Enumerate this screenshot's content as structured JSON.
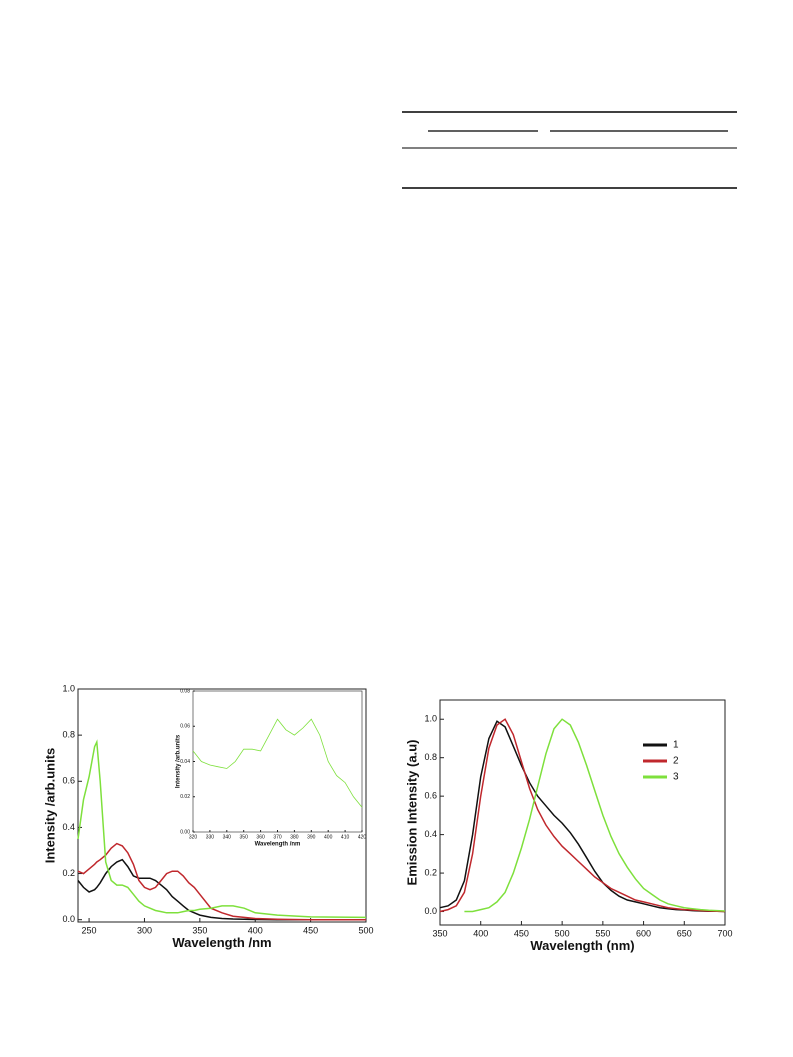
{
  "chart_data": [
    {
      "type": "line",
      "xlabel": "Wavelength /nm",
      "ylabel": "Intensity /arb.units",
      "x": [
        240,
        245,
        250,
        255,
        257,
        260,
        265,
        270,
        275,
        280,
        285,
        290,
        295,
        300,
        305,
        310,
        315,
        320,
        325,
        330,
        335,
        340,
        345,
        350,
        360,
        370,
        380,
        390,
        400,
        420,
        450,
        500
      ],
      "series": [
        {
          "name": "1",
          "color": "#111111",
          "values": [
            0.17,
            0.14,
            0.12,
            0.13,
            0.14,
            0.16,
            0.2,
            0.23,
            0.25,
            0.26,
            0.23,
            0.19,
            0.18,
            0.18,
            0.18,
            0.17,
            0.15,
            0.13,
            0.1,
            0.08,
            0.06,
            0.04,
            0.03,
            0.02,
            0.01,
            0.005,
            0.003,
            0.002,
            0.001,
            0,
            0,
            0
          ]
        },
        {
          "name": "2",
          "color": "#c0282d",
          "values": [
            0.21,
            0.2,
            0.22,
            0.24,
            0.25,
            0.26,
            0.28,
            0.31,
            0.33,
            0.32,
            0.29,
            0.24,
            0.17,
            0.14,
            0.13,
            0.14,
            0.17,
            0.2,
            0.21,
            0.21,
            0.19,
            0.16,
            0.14,
            0.11,
            0.05,
            0.03,
            0.015,
            0.01,
            0.005,
            0.002,
            0,
            0
          ]
        },
        {
          "name": "3",
          "color": "#7ee03c",
          "values": [
            0.35,
            0.52,
            0.62,
            0.75,
            0.77,
            0.6,
            0.25,
            0.17,
            0.15,
            0.15,
            0.14,
            0.11,
            0.08,
            0.06,
            0.05,
            0.04,
            0.035,
            0.03,
            0.03,
            0.03,
            0.035,
            0.04,
            0.04,
            0.045,
            0.05,
            0.06,
            0.06,
            0.05,
            0.03,
            0.02,
            0.012,
            0.01
          ]
        }
      ],
      "xlim": [
        240,
        500
      ],
      "xticks": [
        250,
        300,
        350,
        400,
        450,
        500
      ],
      "ylim": [
        -0.01,
        1.0
      ],
      "yticks": [
        {
          "value": 0,
          "label": "0.0"
        },
        0.2,
        0.4,
        0.6,
        0.8,
        {
          "value": 1,
          "label": "1.0"
        }
      ]
    },
    {
      "type": "line",
      "xlabel": "Wavelength /nm",
      "ylabel": "Intensity /arb.units",
      "x": [
        320,
        325,
        330,
        335,
        340,
        345,
        350,
        355,
        360,
        365,
        370,
        375,
        380,
        385,
        390,
        395,
        400,
        405,
        410,
        415,
        420
      ],
      "series": [
        {
          "color": "#7ee03c",
          "values": [
            0.046,
            0.04,
            0.038,
            0.037,
            0.036,
            0.04,
            0.047,
            0.047,
            0.046,
            0.055,
            0.064,
            0.058,
            0.055,
            0.059,
            0.064,
            0.055,
            0.04,
            0.032,
            0.028,
            0.02,
            0.014
          ]
        }
      ],
      "xlim": [
        320,
        420
      ],
      "xticks": [
        320,
        330,
        340,
        350,
        360,
        370,
        380,
        390,
        400,
        410,
        420
      ],
      "ylim": [
        0,
        0.08
      ],
      "yticks": [
        {
          "value": 0,
          "label": "0.00"
        },
        {
          "value": 0.02,
          "label": "0.02"
        },
        {
          "value": 0.04,
          "label": "0.04"
        },
        {
          "value": 0.06,
          "label": "0.06"
        },
        {
          "value": 0.08,
          "label": "0.08"
        }
      ]
    },
    {
      "type": "line",
      "xlabel": "Wavelength (nm)",
      "ylabel": "Emission Intensity (a.u)",
      "x": [
        350,
        360,
        370,
        380,
        390,
        400,
        410,
        420,
        430,
        440,
        450,
        460,
        470,
        480,
        490,
        500,
        510,
        520,
        530,
        540,
        550,
        560,
        570,
        580,
        590,
        600,
        610,
        620,
        630,
        640,
        650,
        660,
        670,
        680,
        690,
        700
      ],
      "series": [
        {
          "name": "1",
          "color": "#111111",
          "values": [
            0.02,
            0.03,
            0.06,
            0.16,
            0.4,
            0.7,
            0.9,
            0.99,
            0.96,
            0.86,
            0.76,
            0.67,
            0.6,
            0.55,
            0.5,
            0.46,
            0.41,
            0.35,
            0.28,
            0.21,
            0.15,
            0.11,
            0.08,
            0.06,
            0.05,
            0.04,
            0.03,
            0.02,
            0.015,
            0.01,
            0.008,
            0.005,
            0.003,
            0.002,
            0.001,
            0
          ]
        },
        {
          "name": "2",
          "color": "#c0282d",
          "values": [
            0,
            0.01,
            0.03,
            0.1,
            0.3,
            0.6,
            0.85,
            0.97,
            1.0,
            0.92,
            0.78,
            0.64,
            0.53,
            0.45,
            0.39,
            0.34,
            0.3,
            0.26,
            0.22,
            0.18,
            0.15,
            0.12,
            0.1,
            0.08,
            0.06,
            0.05,
            0.04,
            0.03,
            0.02,
            0.015,
            0.01,
            0.008,
            0.005,
            0.003,
            0.002,
            0
          ]
        },
        {
          "name": "3",
          "color": "#7ee03c",
          "values": [
            null,
            null,
            null,
            0,
            0,
            0.01,
            0.02,
            0.05,
            0.1,
            0.2,
            0.33,
            0.48,
            0.65,
            0.82,
            0.95,
            1.0,
            0.97,
            0.88,
            0.76,
            0.63,
            0.5,
            0.39,
            0.3,
            0.23,
            0.17,
            0.12,
            0.09,
            0.06,
            0.04,
            0.03,
            0.02,
            0.015,
            0.01,
            0.007,
            0.005,
            0.003
          ]
        }
      ],
      "xlim": [
        350,
        700
      ],
      "xticks": [
        350,
        400,
        450,
        500,
        550,
        600,
        650,
        700
      ],
      "ylim": [
        -0.07,
        1.1
      ],
      "yticks": [
        {
          "value": 0,
          "label": "0.0"
        },
        0.2,
        0.4,
        0.6,
        0.8,
        {
          "value": 1,
          "label": "1.0"
        }
      ]
    }
  ]
}
